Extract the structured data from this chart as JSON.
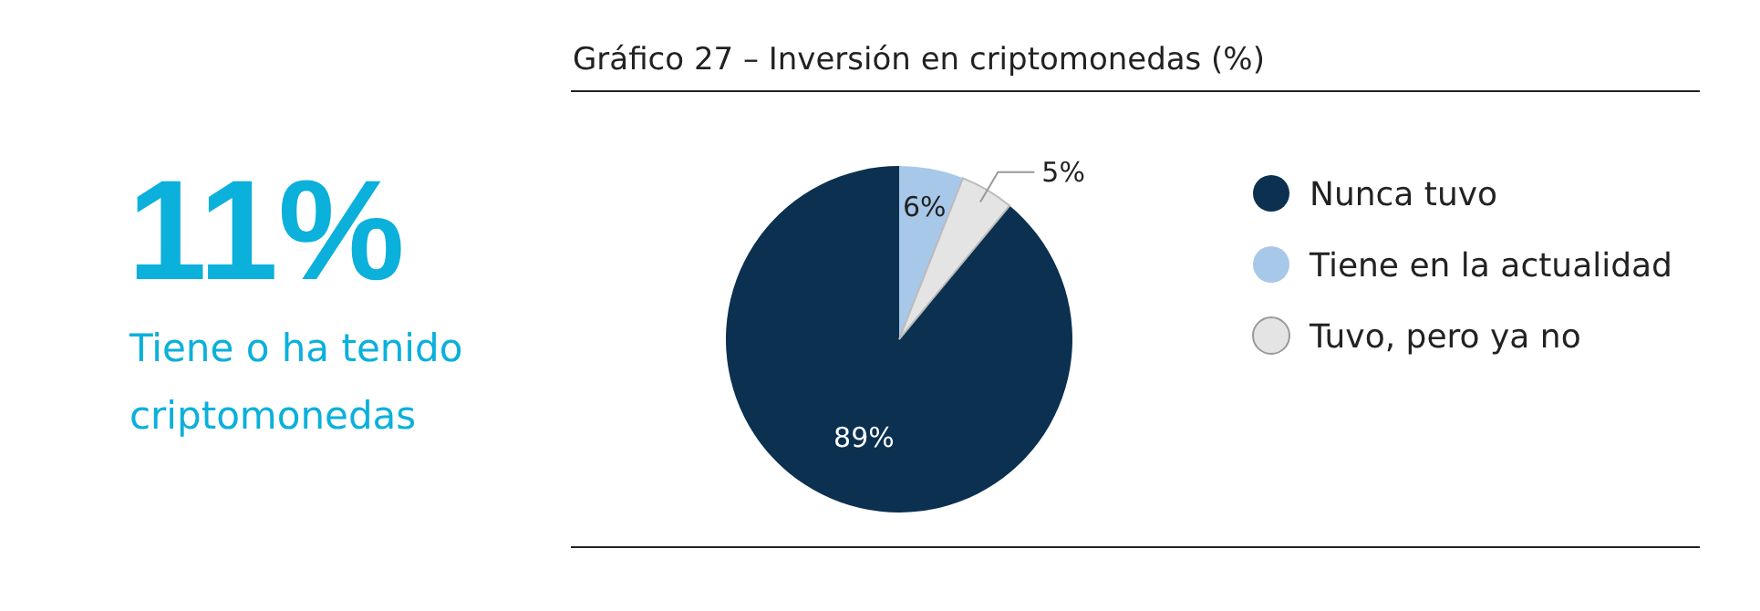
{
  "chart_data": {
    "type": "pie",
    "title": "Gráfico 27 – Inversión en criptomonedas (%)",
    "categories": [
      "Nunca tuvo",
      "Tiene en la actualidad",
      "Tuvo, pero ya no"
    ],
    "values": [
      89,
      6,
      5
    ],
    "colors": [
      "#0b3050",
      "#a8c8ea",
      "#e4e4e4"
    ],
    "value_labels": [
      "89%",
      "6%",
      "5%"
    ],
    "legend": "right",
    "annotations": [
      "11%",
      "Tiene o ha tenido criptomonedas"
    ]
  }
}
